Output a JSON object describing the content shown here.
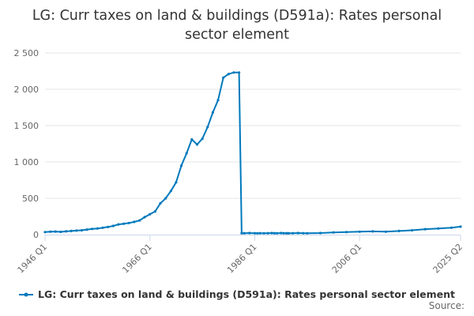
{
  "colors": {
    "series": "#0079bc",
    "grid": "#e6e6e6",
    "axis": "#ccd6eb"
  },
  "source_label": "Source:",
  "chart_data": {
    "type": "line",
    "title": "LG: Curr taxes on land & buildings (D591a): Rates personal sector element",
    "xlabel": "",
    "ylabel": "",
    "ylim": [
      0,
      2500
    ],
    "yticks": [
      0,
      500,
      1000,
      1500,
      2000,
      2500
    ],
    "ytick_labels": [
      "0",
      "500",
      "1 000",
      "1 500",
      "2 000",
      "2 500"
    ],
    "xticks": [
      "1946 Q1",
      "1966 Q1",
      "1986 Q1",
      "2006 Q1",
      "2025 Q2"
    ],
    "xtick_positions": [
      0,
      80,
      160,
      240,
      317
    ],
    "legend_position": "bottom",
    "series": [
      {
        "name": "LG: Curr taxes on land & buildings (D591a): Rates personal sector element",
        "index": [
          0,
          4,
          8,
          12,
          16,
          20,
          24,
          28,
          32,
          36,
          40,
          44,
          48,
          52,
          56,
          60,
          64,
          68,
          72,
          76,
          80,
          84,
          88,
          92,
          96,
          100,
          104,
          108,
          112,
          116,
          120,
          124,
          128,
          132,
          136,
          140,
          144,
          148,
          150,
          152,
          156,
          160,
          162,
          164,
          167,
          170,
          173,
          175,
          177,
          180,
          182,
          184,
          185,
          186,
          189,
          193,
          197,
          200,
          210,
          220,
          230,
          240,
          250,
          260,
          270,
          280,
          290,
          300,
          310,
          317
        ],
        "values": [
          35,
          40,
          42,
          38,
          45,
          50,
          55,
          60,
          70,
          78,
          85,
          95,
          105,
          120,
          140,
          150,
          160,
          175,
          195,
          240,
          280,
          320,
          430,
          500,
          600,
          720,
          950,
          1120,
          1310,
          1240,
          1320,
          1480,
          1680,
          1850,
          2160,
          2210,
          2230,
          2230,
          20,
          20,
          22,
          20,
          18,
          20,
          18,
          20,
          22,
          20,
          18,
          22,
          20,
          18,
          20,
          18,
          20,
          22,
          20,
          18,
          22,
          30,
          35,
          40,
          45,
          40,
          50,
          60,
          75,
          85,
          95,
          110
        ]
      }
    ]
  }
}
